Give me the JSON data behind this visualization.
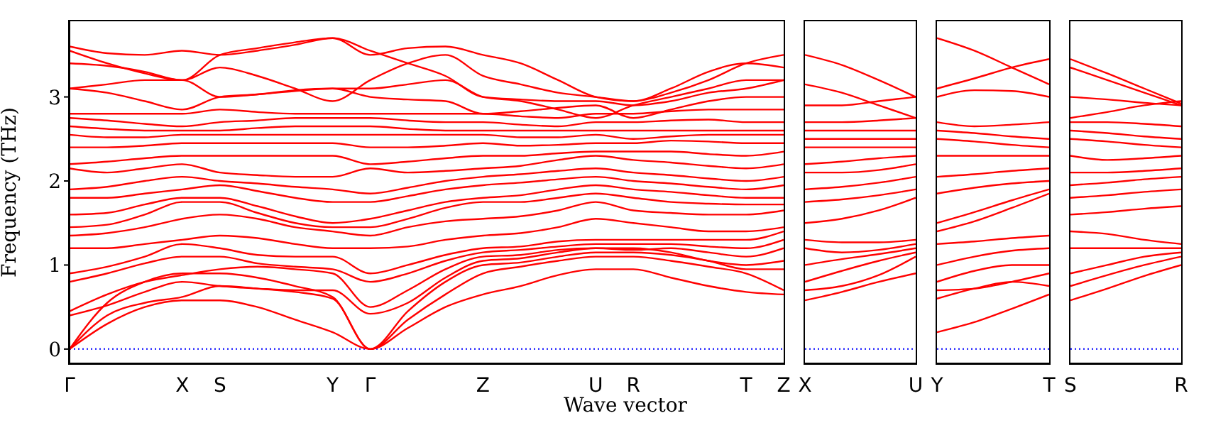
{
  "chart_data": [
    {
      "type": "line",
      "ylabel": "Frequency (THz)",
      "xlabel": "Wave vector",
      "categories": [
        "Γ",
        null,
        null,
        "X",
        "S",
        null,
        null,
        "Y",
        "Γ",
        null,
        null,
        "Z",
        null,
        null,
        "U",
        "R",
        null,
        null,
        "T",
        "Z"
      ],
      "ylim": [
        -0.17,
        3.9
      ],
      "yticks": [
        0,
        1,
        2,
        3
      ],
      "ref_lines": [
        {
          "axis": "y",
          "value": 0,
          "color": "#0000ff",
          "line_style": "dotted"
        }
      ],
      "series": [
        {
          "color": "#ff0000",
          "values": [
            0,
            0.3,
            0.5,
            0.58,
            0.58,
            0.5,
            0.35,
            0.2,
            0,
            0.25,
            0.5,
            0.65,
            0.75,
            0.88,
            0.95,
            0.95,
            0.85,
            0.75,
            0.68,
            0.65
          ]
        },
        {
          "color": "#ff0000",
          "values": [
            0,
            0.4,
            0.55,
            0.62,
            0.75,
            0.72,
            0.68,
            0.6,
            0,
            0.35,
            0.65,
            0.9,
            0.98,
            1.05,
            1.1,
            1.1,
            1.05,
            0.98,
            0.9,
            0.7
          ]
        },
        {
          "color": "#ff0000",
          "values": [
            0,
            0.55,
            0.8,
            0.9,
            0.9,
            0.85,
            0.75,
            0.62,
            0,
            0.45,
            0.8,
            1.0,
            1.03,
            1.1,
            1.15,
            1.15,
            1.12,
            1.05,
            0.95,
            0.95
          ]
        },
        {
          "color": "#ff0000",
          "values": [
            0.4,
            0.52,
            0.68,
            0.8,
            0.75,
            0.72,
            0.7,
            0.7,
            0.42,
            0.55,
            0.85,
            1.05,
            1.08,
            1.15,
            1.2,
            1.2,
            1.15,
            1.05,
            1.0,
            1.05
          ]
        },
        {
          "color": "#ff0000",
          "values": [
            0.45,
            0.65,
            0.8,
            0.88,
            0.95,
            0.98,
            0.95,
            0.9,
            0.5,
            0.7,
            0.95,
            1.1,
            1.12,
            1.18,
            1.2,
            1.18,
            1.2,
            1.15,
            1.1,
            1.2
          ]
        },
        {
          "color": "#ff0000",
          "values": [
            0.8,
            0.9,
            1.02,
            1.1,
            1.1,
            1.02,
            0.98,
            0.95,
            0.8,
            0.9,
            1.05,
            1.15,
            1.18,
            1.22,
            1.25,
            1.25,
            1.25,
            1.22,
            1.2,
            1.3
          ]
        },
        {
          "color": "#ff0000",
          "values": [
            0.9,
            0.98,
            1.1,
            1.25,
            1.2,
            1.12,
            1.1,
            1.1,
            0.9,
            1.0,
            1.12,
            1.2,
            1.22,
            1.28,
            1.3,
            1.3,
            1.3,
            1.3,
            1.3,
            1.4
          ]
        },
        {
          "color": "#ff0000",
          "values": [
            1.2,
            1.2,
            1.25,
            1.3,
            1.35,
            1.32,
            1.25,
            1.2,
            1.2,
            1.22,
            1.3,
            1.35,
            1.38,
            1.45,
            1.55,
            1.5,
            1.45,
            1.4,
            1.4,
            1.45
          ]
        },
        {
          "color": "#ff0000",
          "values": [
            1.35,
            1.38,
            1.45,
            1.55,
            1.6,
            1.55,
            1.45,
            1.4,
            1.35,
            1.45,
            1.52,
            1.55,
            1.58,
            1.65,
            1.75,
            1.65,
            1.62,
            1.6,
            1.6,
            1.65
          ]
        },
        {
          "color": "#ff0000",
          "values": [
            1.45,
            1.48,
            1.6,
            1.75,
            1.75,
            1.62,
            1.5,
            1.45,
            1.45,
            1.55,
            1.68,
            1.75,
            1.75,
            1.8,
            1.85,
            1.8,
            1.75,
            1.73,
            1.72,
            1.72
          ]
        },
        {
          "color": "#ff0000",
          "values": [
            1.6,
            1.62,
            1.72,
            1.8,
            1.8,
            1.7,
            1.58,
            1.5,
            1.55,
            1.65,
            1.75,
            1.8,
            1.83,
            1.9,
            1.95,
            1.9,
            1.87,
            1.83,
            1.8,
            1.8
          ]
        },
        {
          "color": "#ff0000",
          "values": [
            1.8,
            1.8,
            1.85,
            1.9,
            1.95,
            1.88,
            1.8,
            1.75,
            1.75,
            1.82,
            1.9,
            1.95,
            1.98,
            2.02,
            2.05,
            2.0,
            1.97,
            1.93,
            1.9,
            1.95
          ]
        },
        {
          "color": "#ff0000",
          "values": [
            1.9,
            1.93,
            2.0,
            2.05,
            2.0,
            1.97,
            1.93,
            1.9,
            1.85,
            1.92,
            2.0,
            2.05,
            2.08,
            2.12,
            2.15,
            2.1,
            2.07,
            2.03,
            2.0,
            2.05
          ]
        },
        {
          "color": "#ff0000",
          "values": [
            2.15,
            2.1,
            2.15,
            2.2,
            2.1,
            2.07,
            2.05,
            2.05,
            2.15,
            2.1,
            2.12,
            2.15,
            2.18,
            2.25,
            2.3,
            2.25,
            2.22,
            2.18,
            2.15,
            2.2
          ]
        },
        {
          "color": "#ff0000",
          "values": [
            2.2,
            2.23,
            2.27,
            2.3,
            2.3,
            2.3,
            2.3,
            2.3,
            2.2,
            2.23,
            2.27,
            2.3,
            2.3,
            2.33,
            2.35,
            2.35,
            2.35,
            2.32,
            2.3,
            2.35
          ]
        },
        {
          "color": "#ff0000",
          "values": [
            2.4,
            2.4,
            2.42,
            2.45,
            2.45,
            2.45,
            2.45,
            2.45,
            2.4,
            2.4,
            2.42,
            2.45,
            2.42,
            2.43,
            2.45,
            2.45,
            2.48,
            2.47,
            2.45,
            2.45
          ]
        },
        {
          "color": "#ff0000",
          "values": [
            2.55,
            2.52,
            2.52,
            2.55,
            2.55,
            2.55,
            2.55,
            2.55,
            2.55,
            2.55,
            2.55,
            2.55,
            2.52,
            2.52,
            2.55,
            2.5,
            2.53,
            2.55,
            2.55,
            2.55
          ]
        },
        {
          "color": "#ff0000",
          "values": [
            2.65,
            2.62,
            2.6,
            2.6,
            2.6,
            2.63,
            2.65,
            2.65,
            2.65,
            2.62,
            2.6,
            2.6,
            2.6,
            2.6,
            2.6,
            2.6,
            2.6,
            2.6,
            2.6,
            2.6
          ]
        },
        {
          "color": "#ff0000",
          "values": [
            2.75,
            2.72,
            2.68,
            2.65,
            2.7,
            2.72,
            2.75,
            2.75,
            2.75,
            2.72,
            2.7,
            2.7,
            2.67,
            2.65,
            2.7,
            2.7,
            2.72,
            2.73,
            2.7,
            2.7
          ]
        },
        {
          "color": "#ff0000",
          "values": [
            2.8,
            2.8,
            2.8,
            2.8,
            2.85,
            2.82,
            2.8,
            2.8,
            2.8,
            2.8,
            2.8,
            2.8,
            2.77,
            2.75,
            2.8,
            2.8,
            2.83,
            2.85,
            2.85,
            2.85
          ]
        },
        {
          "color": "#ff0000",
          "values": [
            3.1,
            3.05,
            2.95,
            2.85,
            3.0,
            3.03,
            3.08,
            3.1,
            3.0,
            2.97,
            2.95,
            2.8,
            2.83,
            2.87,
            2.9,
            2.75,
            2.85,
            2.95,
            3.0,
            3.0
          ]
        },
        {
          "color": "#ff0000",
          "values": [
            3.1,
            3.15,
            3.2,
            3.2,
            3.0,
            3.03,
            3.07,
            3.1,
            3.1,
            3.15,
            3.2,
            3.0,
            2.95,
            2.85,
            2.75,
            2.9,
            3.0,
            3.1,
            3.2,
            3.2
          ]
        },
        {
          "color": "#ff0000",
          "values": [
            3.4,
            3.37,
            3.3,
            3.2,
            3.35,
            3.25,
            3.1,
            2.95,
            3.2,
            3.4,
            3.5,
            3.25,
            3.15,
            3.05,
            3.0,
            2.95,
            3.1,
            3.3,
            3.4,
            3.35
          ]
        },
        {
          "color": "#ff0000",
          "values": [
            3.55,
            3.4,
            3.28,
            3.2,
            3.5,
            3.58,
            3.65,
            3.7,
            3.5,
            3.58,
            3.6,
            3.5,
            3.4,
            3.2,
            3.0,
            2.95,
            3.05,
            3.2,
            3.4,
            3.5
          ]
        },
        {
          "color": "#ff0000",
          "values": [
            3.6,
            3.52,
            3.5,
            3.55,
            3.5,
            3.55,
            3.62,
            3.7,
            3.55,
            3.4,
            3.25,
            3.0,
            2.97,
            2.95,
            2.95,
            2.9,
            2.95,
            3.05,
            3.1,
            3.2
          ]
        }
      ]
    },
    {
      "type": "line",
      "tick_labels": "x",
      "categories": [
        "X",
        null,
        null,
        "U"
      ],
      "ylim": [
        -0.17,
        3.9
      ],
      "ref_lines": [
        {
          "axis": "y",
          "value": 0,
          "color": "#0000ff",
          "line_style": "dotted"
        }
      ],
      "series": [
        {
          "color": "#ff0000",
          "values": [
            0.58,
            0.68,
            0.8,
            0.9
          ]
        },
        {
          "color": "#ff0000",
          "values": [
            0.7,
            0.75,
            0.88,
            1.1
          ]
        },
        {
          "color": "#ff0000",
          "values": [
            0.8,
            0.93,
            1.05,
            1.15
          ]
        },
        {
          "color": "#ff0000",
          "values": [
            1.0,
            1.07,
            1.13,
            1.2
          ]
        },
        {
          "color": "#ff0000",
          "values": [
            1.2,
            1.15,
            1.18,
            1.25
          ]
        },
        {
          "color": "#ff0000",
          "values": [
            1.3,
            1.27,
            1.27,
            1.3
          ]
        },
        {
          "color": "#ff0000",
          "values": [
            1.5,
            1.55,
            1.65,
            1.8
          ]
        },
        {
          "color": "#ff0000",
          "values": [
            1.75,
            1.78,
            1.83,
            1.9
          ]
        },
        {
          "color": "#ff0000",
          "values": [
            1.9,
            1.93,
            1.98,
            2.05
          ]
        },
        {
          "color": "#ff0000",
          "values": [
            2.1,
            2.1,
            2.13,
            2.2
          ]
        },
        {
          "color": "#ff0000",
          "values": [
            2.2,
            2.23,
            2.27,
            2.3
          ]
        },
        {
          "color": "#ff0000",
          "values": [
            2.4,
            2.4,
            2.4,
            2.4
          ]
        },
        {
          "color": "#ff0000",
          "values": [
            2.5,
            2.5,
            2.5,
            2.5
          ]
        },
        {
          "color": "#ff0000",
          "values": [
            2.6,
            2.6,
            2.6,
            2.6
          ]
        },
        {
          "color": "#ff0000",
          "values": [
            2.7,
            2.7,
            2.72,
            2.75
          ]
        },
        {
          "color": "#ff0000",
          "values": [
            2.9,
            2.9,
            2.95,
            3.0
          ]
        },
        {
          "color": "#ff0000",
          "values": [
            3.15,
            3.05,
            2.9,
            2.75
          ]
        },
        {
          "color": "#ff0000",
          "values": [
            3.5,
            3.38,
            3.2,
            3.0
          ]
        }
      ]
    },
    {
      "type": "line",
      "tick_labels": "x",
      "categories": [
        "Y",
        null,
        null,
        "T"
      ],
      "ylim": [
        -0.17,
        3.9
      ],
      "ref_lines": [
        {
          "axis": "y",
          "value": 0,
          "color": "#0000ff",
          "line_style": "dotted"
        }
      ],
      "series": [
        {
          "color": "#ff0000",
          "values": [
            0.2,
            0.32,
            0.48,
            0.65
          ]
        },
        {
          "color": "#ff0000",
          "values": [
            0.6,
            0.72,
            0.8,
            0.75
          ]
        },
        {
          "color": "#ff0000",
          "values": [
            0.7,
            0.72,
            0.8,
            0.9
          ]
        },
        {
          "color": "#ff0000",
          "values": [
            0.8,
            0.93,
            1.0,
            1.0
          ]
        },
        {
          "color": "#ff0000",
          "values": [
            1.0,
            1.1,
            1.17,
            1.2
          ]
        },
        {
          "color": "#ff0000",
          "values": [
            1.25,
            1.28,
            1.32,
            1.35
          ]
        },
        {
          "color": "#ff0000",
          "values": [
            1.4,
            1.52,
            1.68,
            1.85
          ]
        },
        {
          "color": "#ff0000",
          "values": [
            1.5,
            1.63,
            1.77,
            1.9
          ]
        },
        {
          "color": "#ff0000",
          "values": [
            1.85,
            1.92,
            1.97,
            2.0
          ]
        },
        {
          "color": "#ff0000",
          "values": [
            2.05,
            2.08,
            2.12,
            2.15
          ]
        },
        {
          "color": "#ff0000",
          "values": [
            2.3,
            2.3,
            2.3,
            2.3
          ]
        },
        {
          "color": "#ff0000",
          "values": [
            2.5,
            2.47,
            2.43,
            2.4
          ]
        },
        {
          "color": "#ff0000",
          "values": [
            2.6,
            2.57,
            2.53,
            2.5
          ]
        },
        {
          "color": "#ff0000",
          "values": [
            2.7,
            2.65,
            2.67,
            2.7
          ]
        },
        {
          "color": "#ff0000",
          "values": [
            3.0,
            3.08,
            3.07,
            3.0
          ]
        },
        {
          "color": "#ff0000",
          "values": [
            3.1,
            3.22,
            3.35,
            3.45
          ]
        },
        {
          "color": "#ff0000",
          "values": [
            3.7,
            3.55,
            3.35,
            3.15
          ]
        }
      ]
    },
    {
      "type": "line",
      "tick_labels": "x",
      "categories": [
        "S",
        null,
        null,
        "R"
      ],
      "ylim": [
        -0.17,
        3.9
      ],
      "ref_lines": [
        {
          "axis": "y",
          "value": 0,
          "color": "#0000ff",
          "line_style": "dotted"
        }
      ],
      "series": [
        {
          "color": "#ff0000",
          "values": [
            0.58,
            0.72,
            0.87,
            1.0
          ]
        },
        {
          "color": "#ff0000",
          "values": [
            0.75,
            0.88,
            1.0,
            1.1
          ]
        },
        {
          "color": "#ff0000",
          "values": [
            0.9,
            1.0,
            1.1,
            1.15
          ]
        },
        {
          "color": "#ff0000",
          "values": [
            1.2,
            1.2,
            1.2,
            1.2
          ]
        },
        {
          "color": "#ff0000",
          "values": [
            1.4,
            1.37,
            1.3,
            1.25
          ]
        },
        {
          "color": "#ff0000",
          "values": [
            1.6,
            1.63,
            1.67,
            1.7
          ]
        },
        {
          "color": "#ff0000",
          "values": [
            1.8,
            1.83,
            1.87,
            1.9
          ]
        },
        {
          "color": "#ff0000",
          "values": [
            1.95,
            1.98,
            2.02,
            2.05
          ]
        },
        {
          "color": "#ff0000",
          "values": [
            2.1,
            2.1,
            2.12,
            2.15
          ]
        },
        {
          "color": "#ff0000",
          "values": [
            2.3,
            2.25,
            2.27,
            2.3
          ]
        },
        {
          "color": "#ff0000",
          "values": [
            2.5,
            2.47,
            2.43,
            2.4
          ]
        },
        {
          "color": "#ff0000",
          "values": [
            2.6,
            2.57,
            2.53,
            2.5
          ]
        },
        {
          "color": "#ff0000",
          "values": [
            2.7,
            2.7,
            2.68,
            2.65
          ]
        },
        {
          "color": "#ff0000",
          "values": [
            2.75,
            2.82,
            2.9,
            2.95
          ]
        },
        {
          "color": "#ff0000",
          "values": [
            3.0,
            2.97,
            2.93,
            2.9
          ]
        },
        {
          "color": "#ff0000",
          "values": [
            3.35,
            3.2,
            3.05,
            2.9
          ]
        },
        {
          "color": "#ff0000",
          "values": [
            3.45,
            3.28,
            3.1,
            2.92
          ]
        }
      ]
    }
  ]
}
